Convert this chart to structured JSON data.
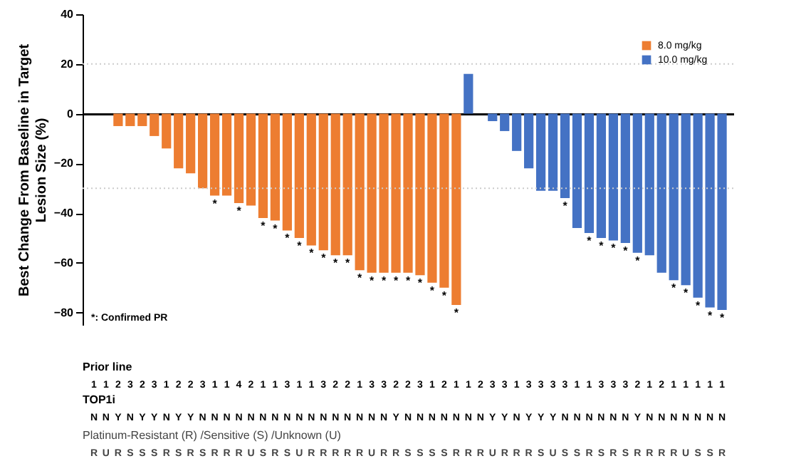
{
  "chart_data": {
    "type": "bar",
    "ylabel": "Best Change From Baseline in Target\nLesion Size (%)",
    "categories": [
      null,
      null,
      null,
      null,
      null,
      null,
      null,
      null,
      null,
      null,
      null,
      null,
      null,
      null,
      null,
      null,
      null,
      null,
      null,
      null,
      null,
      null,
      null,
      null,
      null,
      null,
      null,
      null,
      null,
      null,
      null,
      null,
      null,
      null,
      null,
      null,
      null,
      null,
      null,
      null,
      null,
      null,
      null,
      null,
      null,
      null,
      null,
      null,
      null,
      null,
      null,
      null,
      null
    ],
    "series": [
      {
        "name": "8.0 mg/kg",
        "color": "#ed7d31",
        "values": [
          null,
          null,
          -5,
          -5,
          -5,
          -9,
          -14,
          -22,
          -24,
          -30,
          -33,
          -33,
          -36,
          -37,
          -42,
          -43,
          -47,
          -50,
          -53,
          -55,
          -57,
          -57,
          -63,
          -64,
          -64,
          -64,
          -64,
          -65,
          -68,
          -70,
          -77,
          null,
          null,
          null,
          null,
          null,
          null,
          null,
          null,
          null,
          null,
          null,
          null,
          null,
          null,
          null,
          null,
          null,
          null,
          null,
          null,
          null,
          null
        ],
        "value_labels": [
          null,
          null,
          null,
          null,
          null,
          null,
          null,
          null,
          null,
          null,
          "*",
          null,
          "*",
          null,
          "*",
          "*",
          "*",
          "*",
          "*",
          "*",
          "*",
          "*",
          "*",
          "*",
          "*",
          "*",
          "*",
          "*",
          "*",
          "*",
          "*",
          null,
          null,
          null,
          null,
          null,
          null,
          null,
          null,
          null,
          null,
          null,
          null,
          null,
          null,
          null,
          null,
          null,
          null,
          null,
          null,
          null,
          null
        ]
      },
      {
        "name": "10.0 mg/kg",
        "color": "#4472c4",
        "values": [
          null,
          null,
          null,
          null,
          null,
          null,
          null,
          null,
          null,
          null,
          null,
          null,
          null,
          null,
          null,
          null,
          null,
          null,
          null,
          null,
          null,
          null,
          null,
          null,
          null,
          null,
          null,
          null,
          null,
          null,
          null,
          16,
          null,
          -3,
          -7,
          -15,
          -22,
          -31,
          -31,
          -34,
          -46,
          -48,
          -50,
          -51,
          -52,
          -56,
          -57,
          -64,
          -67,
          -69,
          -74,
          -78,
          -79
        ],
        "value_labels": [
          null,
          null,
          null,
          null,
          null,
          null,
          null,
          null,
          null,
          null,
          null,
          null,
          null,
          null,
          null,
          null,
          null,
          null,
          null,
          null,
          null,
          null,
          null,
          null,
          null,
          null,
          null,
          null,
          null,
          null,
          null,
          null,
          null,
          null,
          null,
          null,
          null,
          null,
          null,
          "*",
          null,
          "*",
          "*",
          "*",
          "*",
          "*",
          null,
          null,
          "*",
          "*",
          "*",
          "*",
          "*"
        ]
      }
    ],
    "ylim": [
      -85,
      40
    ],
    "yticks": [
      40,
      20,
      0,
      -20,
      -40,
      -60,
      -80
    ],
    "ref_lines": [
      {
        "axis": "y",
        "value": 20,
        "color": "#cccccc",
        "line_style": "dotted"
      },
      {
        "axis": "y",
        "value": -30,
        "color": "#cccccc",
        "line_style": "dotted"
      }
    ],
    "legend": "top right",
    "tick_labels": "y",
    "annotations": [
      "*: Confirmed PR",
      "Prior line",
      "1 1 2 3 2 3 1 2 2 3 1 1 4 2 1 1 3 1 1 3 2 2 1 3 3 2 2 3 1 2 1 1 2 3 3 1 3 3 3 3 1 1 3 3 3 2 1 2 1 1 1 1 1",
      "TOP1i",
      "N N Y N Y Y N Y Y N N N N N N N N N N N N N N N N Y N N N N N N N Y Y N Y Y Y N N N N N N Y N N N N N N N",
      "Platinum-Resistant (R) /Sensitive (S) /Unknown (U)",
      "R U R S S S R S R S R R R U S R S U R R R R R U R R S S S S R R R U R R R S U S S R S R S R R R R U S S R"
    ]
  }
}
